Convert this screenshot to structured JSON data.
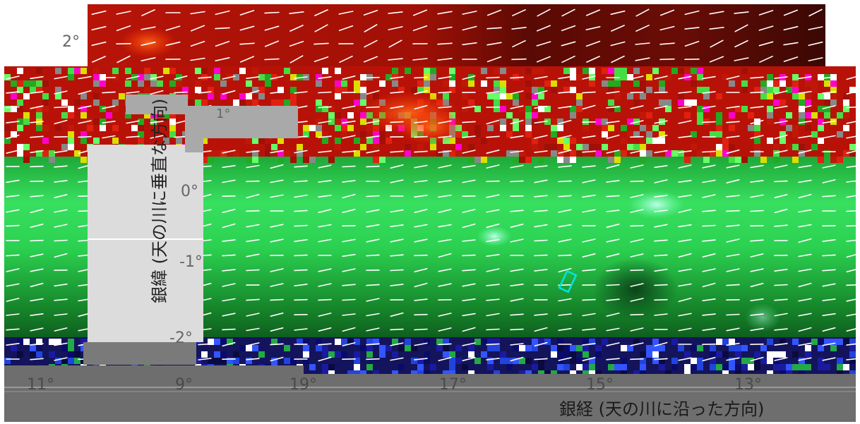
{
  "chart_data": [
    {
      "type": "heatmap",
      "description_kind": "galactic plane map with polarization vectors",
      "xlabel": "銀経 (天の川に沿った方向)",
      "ylabel": "銀緯 (天の川に垂直な方向)",
      "x_ticks": [
        "11°",
        "9°",
        "19°",
        "17°",
        "15°",
        "13°"
      ],
      "y_ticks": [
        "2°",
        "1°",
        "0°",
        "-1°",
        "-2°"
      ],
      "colors": {
        "upper_band": "#c01808",
        "plane": "#22cc44",
        "plane_core": "#66ff88",
        "lower_band": "#101050",
        "vector": "#ffffff",
        "marker": "#00e5e5",
        "axis_text": "#666666"
      },
      "grid": false
    }
  ]
}
